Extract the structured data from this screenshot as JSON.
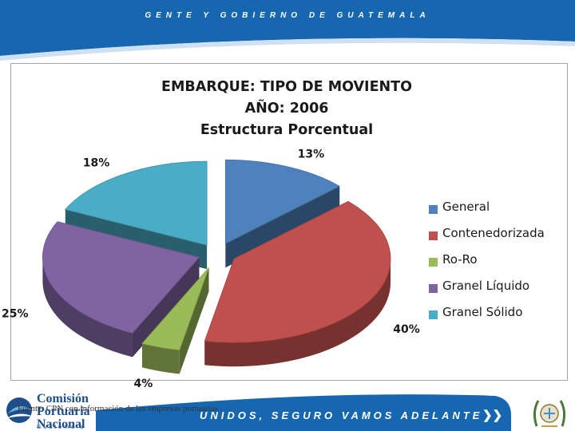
{
  "header": {
    "title": "GENTE Y GOBIERNO DE GUATEMALA",
    "band_color": "#1767b0"
  },
  "chart_data": {
    "type": "pie",
    "title_lines": [
      "EMBARQUE: TIPO DE MOVIENTO",
      "AÑO: 2006",
      "Estructura Porcentual"
    ],
    "series": [
      {
        "name": "General",
        "value": 13,
        "label": "13%",
        "color": "#4f81bd"
      },
      {
        "name": "Contenedorizada",
        "value": 40,
        "label": "40%",
        "color": "#c0504d"
      },
      {
        "name": "Ro-Ro",
        "value": 4,
        "label": "4%",
        "color": "#9bbb59"
      },
      {
        "name": "Granel Líquido",
        "value": 25,
        "label": "25%",
        "color": "#8064a2"
      },
      {
        "name": "Granel Sólido",
        "value": 18,
        "label": "18%",
        "color": "#4bacc6"
      }
    ],
    "legend_position": "right",
    "exploded": true,
    "style": "3d"
  },
  "footer": {
    "slogan": "UNIDOS, SEGURO VAMOS ADELANTE",
    "arrow": "❯❯",
    "band_color": "#1767b0",
    "logo_lines": [
      "Comisión",
      "Portuaria",
      "Nacional"
    ],
    "logo_subtitle": "Guatemala",
    "source_note": "Fuente: CPN con información de las empresas portuarias"
  }
}
